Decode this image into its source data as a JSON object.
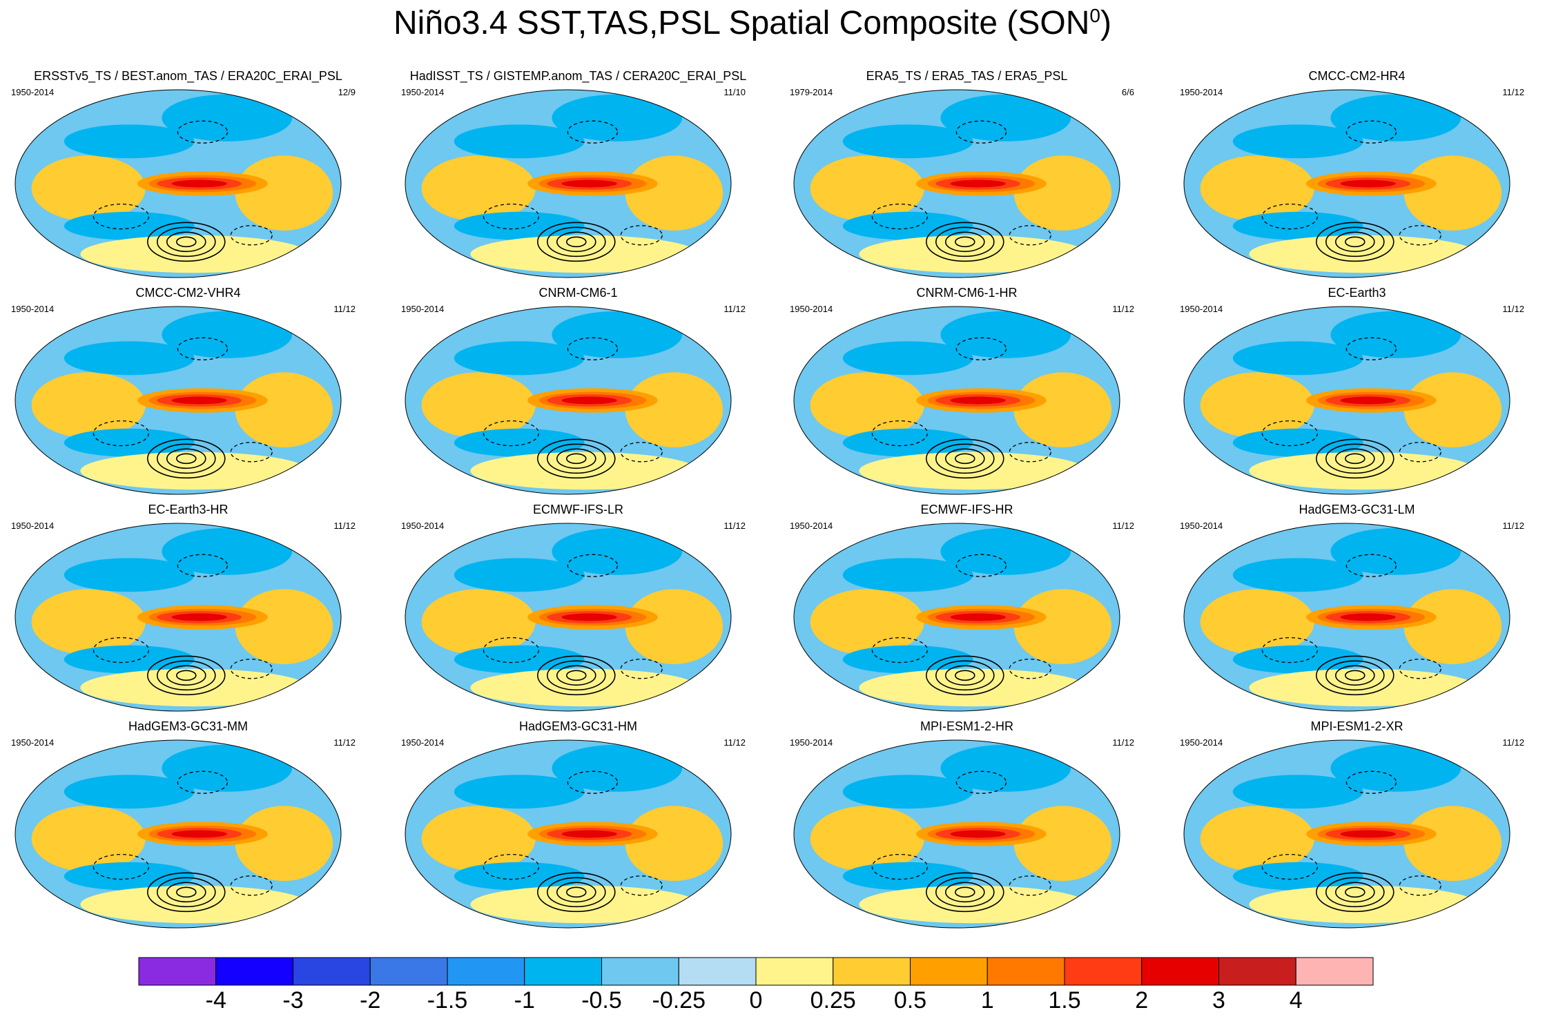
{
  "title": {
    "main": "Niño3.4 SST,TAS,PSL Spatial Composite (SON",
    "sup": "0",
    "close": ")"
  },
  "chart_data": {
    "type": "heatmap",
    "projection": "Robinson-like global map, Pacific-centered",
    "variable": "SST/TAS anomaly composite (shaded) with PSL contours (solid positive, dashed negative)",
    "panels": [
      {
        "name": "ERSSTv5_TS / BEST.anom_TAS / ERA20C_ERAI_PSL",
        "period": "1950-2014",
        "count": "12/9"
      },
      {
        "name": "HadISST_TS / GISTEMP.anom_TAS / CERA20C_ERAI_PSL",
        "period": "1950-2014",
        "count": "11/10"
      },
      {
        "name": "ERA5_TS / ERA5_TAS / ERA5_PSL",
        "period": "1979-2014",
        "count": "6/6"
      },
      {
        "name": "CMCC-CM2-HR4",
        "period": "1950-2014",
        "count": "11/12"
      },
      {
        "name": "CMCC-CM2-VHR4",
        "period": "1950-2014",
        "count": "11/12"
      },
      {
        "name": "CNRM-CM6-1",
        "period": "1950-2014",
        "count": "11/12"
      },
      {
        "name": "CNRM-CM6-1-HR",
        "period": "1950-2014",
        "count": "11/12"
      },
      {
        "name": "EC-Earth3",
        "period": "1950-2014",
        "count": "11/12"
      },
      {
        "name": "EC-Earth3-HR",
        "period": "1950-2014",
        "count": "11/12"
      },
      {
        "name": "ECMWF-IFS-LR",
        "period": "1950-2014",
        "count": "11/12"
      },
      {
        "name": "ECMWF-IFS-HR",
        "period": "1950-2014",
        "count": "11/12"
      },
      {
        "name": "HadGEM3-GC31-LM",
        "period": "1950-2014",
        "count": "11/12"
      },
      {
        "name": "HadGEM3-GC31-MM",
        "period": "1950-2014",
        "count": "11/12"
      },
      {
        "name": "HadGEM3-GC31-HM",
        "period": "1950-2014",
        "count": "11/12"
      },
      {
        "name": "MPI-ESM1-2-HR",
        "period": "1950-2014",
        "count": "11/12"
      },
      {
        "name": "MPI-ESM1-2-XR",
        "period": "1950-2014",
        "count": "11/12"
      }
    ],
    "colorbar": {
      "labels": [
        "-4",
        "-3",
        "-2",
        "-1.5",
        "-1",
        "-0.5",
        "-0.25",
        "0",
        "0.25",
        "0.5",
        "1",
        "1.5",
        "2",
        "3",
        "4"
      ],
      "colors": [
        "#8a2be2",
        "#1400ff",
        "#2946e3",
        "#3a78e8",
        "#2196f3",
        "#00b4f0",
        "#6ec8f0",
        "#b4dcf2",
        "#fff48c",
        "#ffcc32",
        "#ffa000",
        "#ff7800",
        "#ff3c14",
        "#e60000",
        "#c81e1e",
        "#ffb4b4"
      ]
    }
  }
}
